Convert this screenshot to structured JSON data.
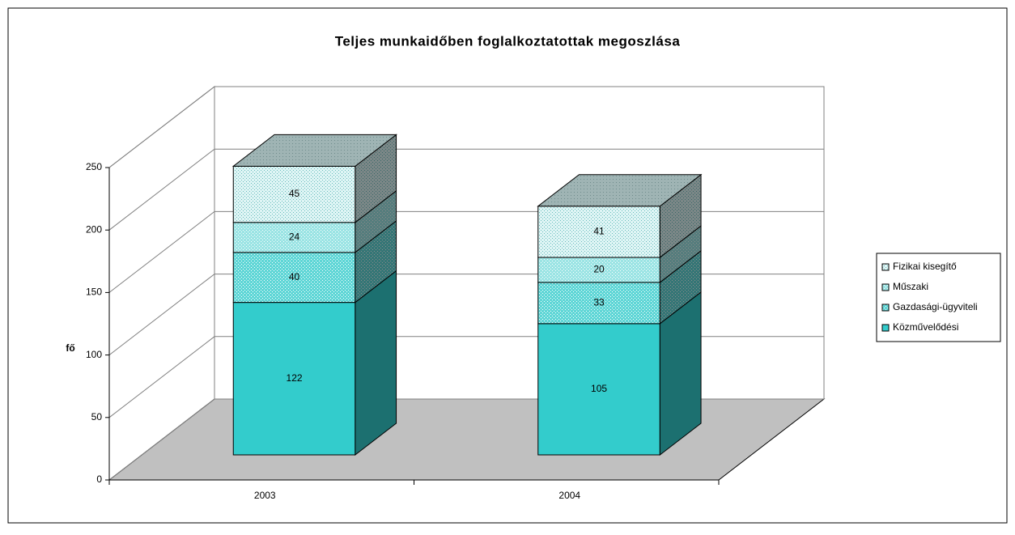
{
  "chart_data": {
    "type": "bar3d_stacked",
    "title": "Teljes munkaidőben foglalkoztatottak megoszlása",
    "y_label": "fő",
    "categories": [
      "2003",
      "2004"
    ],
    "series": [
      {
        "name": "Közművelődési",
        "color": "#33cccc",
        "values": [
          122,
          105
        ]
      },
      {
        "name": "Gazdasági-ügyviteli",
        "color": "#5fd6d6",
        "values": [
          40,
          33
        ]
      },
      {
        "name": "Műszaki",
        "color": "#9be4e4",
        "values": [
          24,
          20
        ]
      },
      {
        "name": "Fizikai kisegítő",
        "color": "#dff5f5",
        "values": [
          45,
          41
        ]
      }
    ],
    "ylim": [
      0,
      250
    ],
    "yticks": [
      0,
      50,
      100,
      150,
      200,
      250
    ],
    "grid": true,
    "legend": "right"
  }
}
